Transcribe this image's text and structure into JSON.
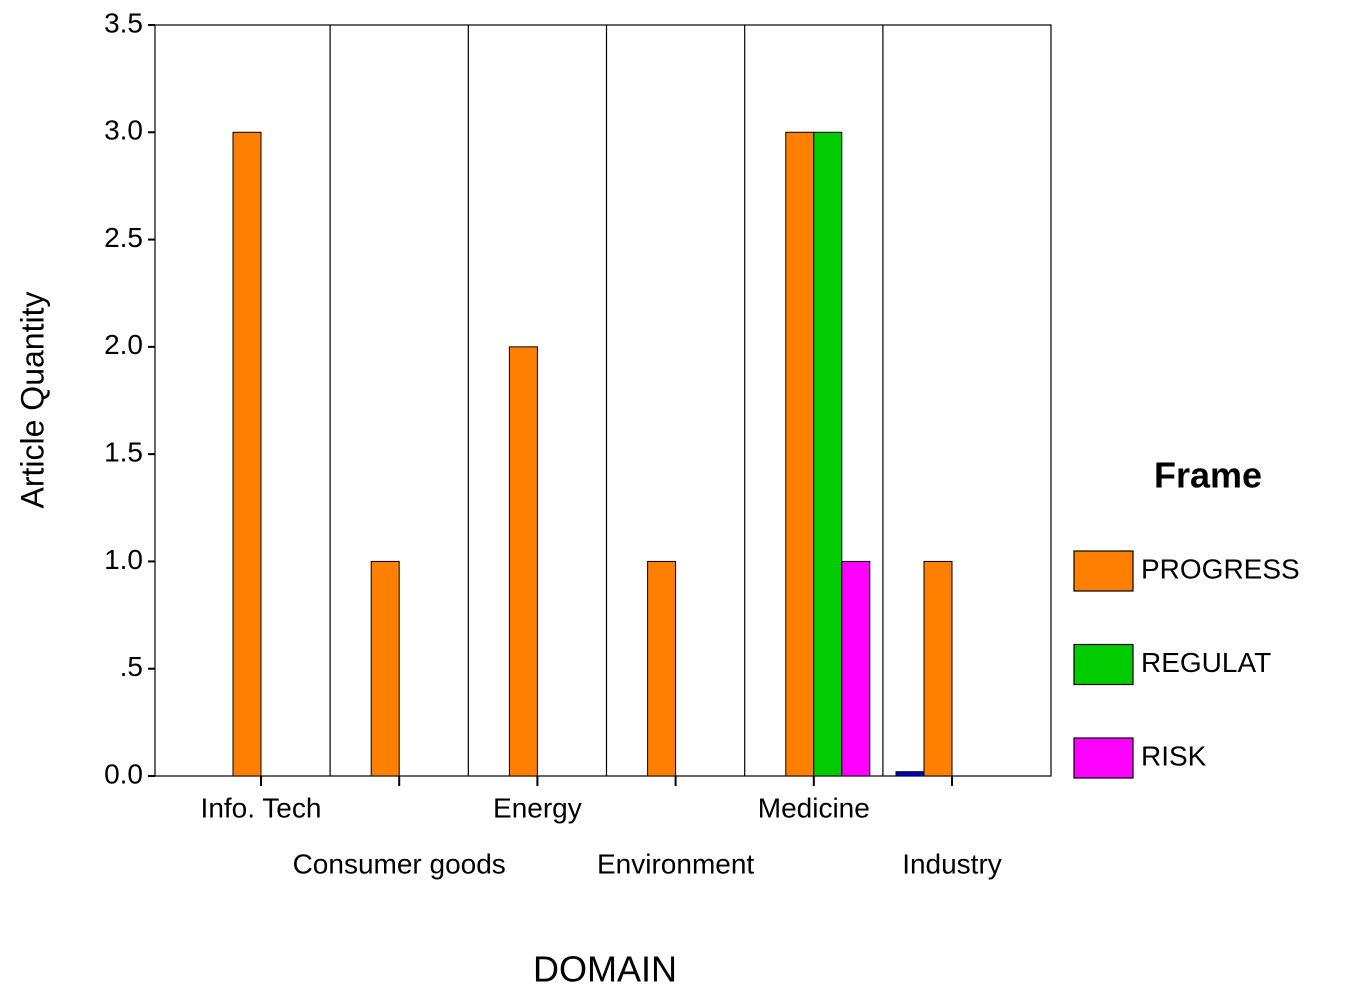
{
  "chart_data": {
    "type": "bar",
    "x_label": "DOMAIN",
    "y_label": "Article Quantity",
    "legend_title": "Frame",
    "legend": "right",
    "categories": [
      "Info. Tech",
      "Consumer goods",
      "Energy",
      "Environment",
      "Medicine",
      "Industry"
    ],
    "series": [
      {
        "name": "PROGRESS",
        "color": "#ff8000",
        "values": [
          3,
          1,
          2,
          1,
          3,
          1
        ]
      },
      {
        "name": "REGULAT",
        "color": "#00cc00",
        "values": [
          null,
          null,
          null,
          null,
          3,
          null
        ]
      },
      {
        "name": "RISK",
        "color": "#ff00ff",
        "values": [
          null,
          null,
          null,
          null,
          1,
          null
        ]
      },
      {
        "color": "#0000cc",
        "values": [
          null,
          null,
          null,
          null,
          null,
          0.02
        ]
      }
    ],
    "ylim": [
      0,
      3.5
    ],
    "yticks": [
      {
        "value": 0,
        "label": "0.0"
      },
      {
        "value": 0.5,
        "label": ".5"
      },
      {
        "value": 1,
        "label": "1.0"
      },
      1.5,
      {
        "value": 2,
        "label": "2.0"
      },
      2.5,
      {
        "value": 3,
        "label": "3.0"
      },
      3.5
    ]
  }
}
